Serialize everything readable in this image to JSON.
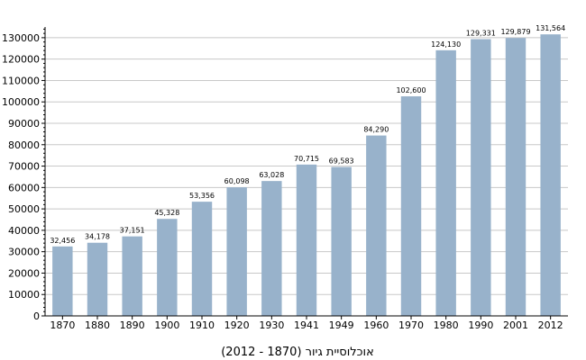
{
  "chart_data": {
    "type": "bar",
    "title": "אוכלוסיית גיור (1870 - 2012)",
    "xlabel": "",
    "ylabel": "",
    "ylim": [
      0,
      135000
    ],
    "y_ticks": [
      0,
      10000,
      20000,
      30000,
      40000,
      50000,
      60000,
      70000,
      80000,
      90000,
      100000,
      110000,
      120000,
      130000
    ],
    "grid": true,
    "bar_color": "#98b2cb",
    "categories": [
      "1870",
      "1880",
      "1890",
      "1900",
      "1910",
      "1920",
      "1930",
      "1941",
      "1949",
      "1960",
      "1970",
      "1980",
      "1990",
      "2001",
      "2012"
    ],
    "values": [
      32456,
      34178,
      37151,
      45328,
      53356,
      60098,
      63028,
      70715,
      69583,
      84290,
      102600,
      124130,
      129331,
      129879,
      131564
    ],
    "value_labels": [
      "32,456",
      "34,178",
      "37,151",
      "45,328",
      "53,356",
      "60,098",
      "63,028",
      "70,715",
      "69,583",
      "84,290",
      "102,600",
      "124,130",
      "129,331",
      "129,879",
      "131,564"
    ]
  }
}
